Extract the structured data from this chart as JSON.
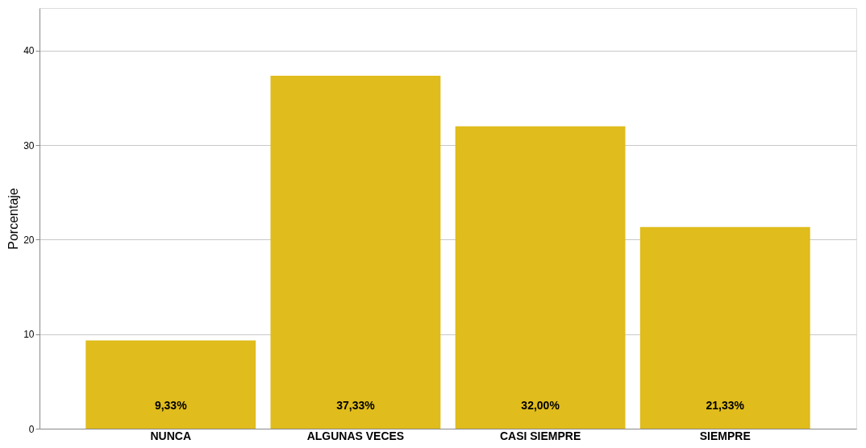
{
  "chart_data": {
    "type": "bar",
    "ylabel": "Porcentaje",
    "categories": [
      "NUNCA",
      "ALGUNAS VECES",
      "CASI SIEMPRE",
      "SIEMPRE"
    ],
    "values": [
      9.33,
      37.33,
      32.0,
      21.33
    ],
    "value_labels": [
      "9,33%",
      "37,33%",
      "32,00%",
      "21,33%"
    ],
    "color": "#e0bc1c",
    "ylim": [
      0,
      44.5
    ],
    "yticks": [
      0,
      10,
      20,
      30,
      40
    ],
    "grid": "y"
  }
}
